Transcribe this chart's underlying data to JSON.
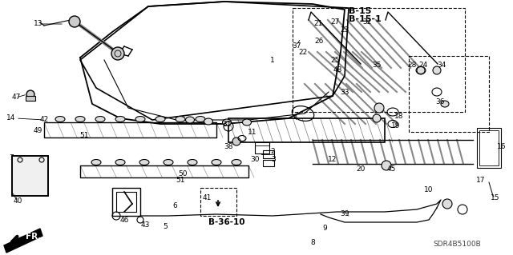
{
  "bg_color": "#ffffff",
  "diagram_code": "SDR4B5100B",
  "ref_b15": "B-15",
  "ref_b151": "B-15-1",
  "ref_b3610": "B-36-10",
  "fr_label": "FR.",
  "figsize": [
    6.4,
    3.19
  ],
  "dpi": 100
}
